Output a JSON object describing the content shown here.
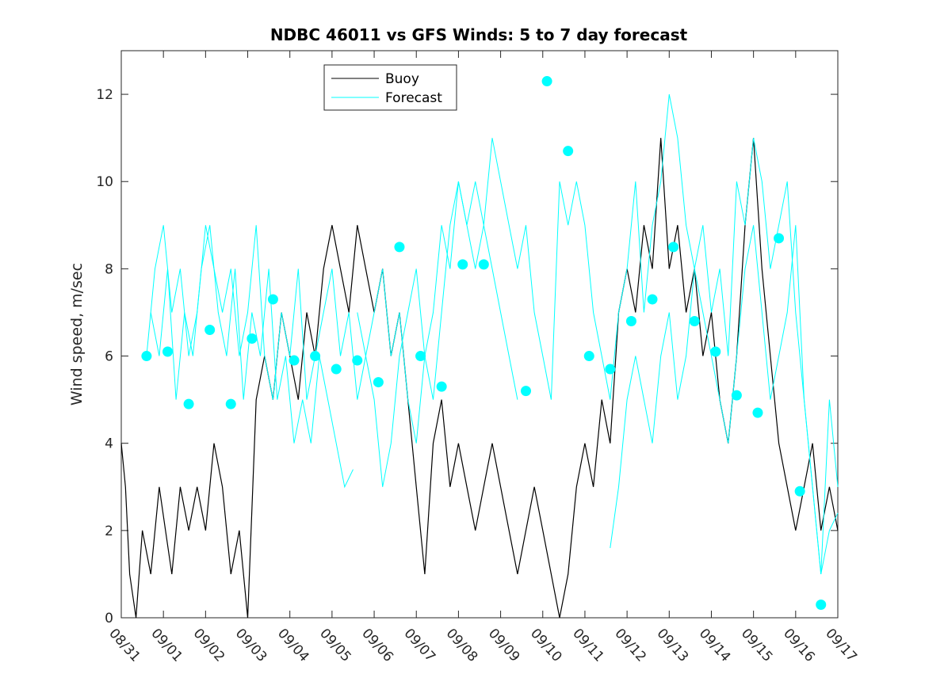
{
  "chart_data": {
    "type": "line",
    "title": "NDBC 46011 vs GFS Winds: 5 to 7 day forecast",
    "xlabel": "",
    "ylabel": "Wind speed, m/sec",
    "xlim": [
      0,
      17
    ],
    "ylim": [
      0,
      13
    ],
    "yticks": [
      0,
      2,
      4,
      6,
      8,
      10,
      12
    ],
    "xtick_labels": [
      "08/31",
      "09/01",
      "09/02",
      "09/03",
      "09/04",
      "09/05",
      "09/06",
      "09/07",
      "09/08",
      "09/09",
      "09/10",
      "09/11",
      "09/12",
      "09/13",
      "09/14",
      "09/15",
      "09/16",
      "09/17"
    ],
    "legend": {
      "position": "top-center",
      "entries": [
        "Buoy",
        "Forecast"
      ]
    },
    "colors": {
      "buoy": "#000000",
      "forecast": "#00ffff"
    },
    "series": [
      {
        "name": "Buoy",
        "x": [
          0,
          0.1,
          0.2,
          0.35,
          0.5,
          0.7,
          0.9,
          1.05,
          1.2,
          1.4,
          1.6,
          1.8,
          2.0,
          2.2,
          2.4,
          2.6,
          2.8,
          3.0,
          3.2,
          3.4,
          3.6,
          3.8,
          4.0,
          4.2,
          4.4,
          4.6,
          4.8,
          5.0,
          5.2,
          5.4,
          5.6,
          5.8,
          6.0,
          6.2,
          6.4,
          6.6,
          6.8,
          7.0,
          7.2,
          7.4,
          7.6,
          7.8,
          8.0,
          8.2,
          8.4,
          8.6,
          8.8,
          9.0,
          9.2,
          9.4,
          9.6,
          9.8,
          10.0,
          10.2,
          10.4,
          10.6,
          10.8,
          11.0,
          11.2,
          11.4,
          11.6,
          11.8,
          12.0,
          12.2,
          12.4,
          12.6,
          12.8,
          13.0,
          13.2,
          13.4,
          13.6,
          13.8,
          14.0,
          14.2,
          14.4,
          14.6,
          14.8,
          15.0,
          15.2,
          15.4,
          15.6,
          15.8,
          16.0,
          16.2,
          16.4,
          16.6,
          16.8,
          17.0
        ],
        "values": [
          4,
          3,
          1,
          0,
          2,
          1,
          3,
          2,
          1,
          3,
          2,
          3,
          2,
          4,
          3,
          1,
          2,
          0,
          5,
          6,
          5,
          7,
          6,
          5,
          7,
          6,
          8,
          9,
          8,
          7,
          9,
          8,
          7,
          8,
          6,
          7,
          5,
          3,
          1,
          4,
          5,
          3,
          4,
          3,
          2,
          3,
          4,
          3,
          2,
          1,
          2,
          3,
          2,
          1,
          0,
          1,
          3,
          4,
          3,
          5,
          4,
          7,
          8,
          7,
          9,
          8,
          11,
          8,
          9,
          7,
          8,
          6,
          7,
          5,
          4,
          6,
          9,
          11,
          8,
          6,
          4,
          3,
          2,
          3,
          4,
          2,
          3,
          2
        ]
      },
      {
        "name": "Forecast",
        "x": [
          0.6,
          0.8,
          1.0,
          1.2,
          1.4,
          1.6,
          1.8,
          2.0,
          2.2,
          2.4,
          2.6,
          2.8,
          3.0,
          3.2,
          3.4,
          3.6,
          3.8,
          4.0,
          4.2,
          4.4,
          4.6,
          4.8,
          5.0,
          5.2,
          5.4,
          5.6,
          5.8,
          6.0,
          6.2,
          6.4,
          6.6,
          6.8,
          7.0,
          7.2,
          7.4,
          7.6,
          7.8,
          8.0,
          8.2,
          8.4,
          8.6,
          8.8,
          9.0,
          9.2,
          9.4,
          9.6,
          9.8,
          10.0,
          10.2,
          10.4,
          10.6,
          10.8,
          11.0,
          11.2,
          11.4,
          11.6,
          11.8,
          12.0,
          12.2,
          12.4,
          12.6,
          12.8,
          13.0,
          13.2,
          13.4,
          13.6,
          13.8,
          14.0,
          14.2,
          14.4,
          14.6,
          14.8,
          15.0,
          15.2,
          15.4,
          15.6,
          15.8,
          16.0,
          16.2,
          16.4,
          16.6,
          16.8,
          17.0
        ],
        "values": [
          6,
          8,
          9,
          7,
          8,
          6,
          7,
          9,
          8,
          7,
          8,
          6,
          7,
          9,
          6,
          5,
          7,
          6,
          8,
          5,
          6,
          7,
          8,
          6,
          7,
          5,
          6,
          7,
          8,
          6,
          7,
          5,
          4,
          6,
          7,
          9,
          8,
          10,
          9,
          10,
          9,
          11,
          10,
          9,
          8,
          9,
          7,
          6,
          5,
          10,
          9,
          10,
          9,
          7,
          6,
          5,
          7,
          8,
          10,
          7,
          9,
          10,
          12,
          11,
          9,
          8,
          9,
          7,
          8,
          6,
          10,
          9,
          11,
          10,
          8,
          9,
          10,
          7,
          5,
          3,
          1,
          5,
          3
        ]
      },
      {
        "name": "Forecast",
        "x": [
          0.7,
          0.9,
          1.1,
          1.3,
          1.5,
          1.7,
          1.9,
          2.1,
          2.3,
          2.5,
          2.7,
          2.9,
          3.1,
          3.3,
          3.5,
          3.7,
          3.9,
          4.1,
          4.3,
          4.5,
          4.7,
          4.9,
          5.1,
          5.3,
          5.5
        ],
        "values": [
          7,
          6,
          8,
          5,
          7,
          6,
          8,
          9,
          7,
          6,
          8,
          5,
          7,
          6,
          8,
          5,
          6,
          4,
          5,
          4,
          6,
          5,
          4,
          3,
          3.4
        ]
      },
      {
        "name": "Forecast",
        "x": [
          5.6,
          5.8,
          6.0,
          6.2,
          6.4,
          6.6,
          6.8,
          7.0,
          7.2,
          7.4,
          7.6,
          7.8,
          8.0,
          8.2,
          8.4,
          8.6,
          8.8,
          9.0,
          9.2,
          9.4
        ],
        "values": [
          7,
          6,
          5,
          3,
          4,
          6,
          7,
          8,
          6,
          5,
          7,
          9,
          10,
          9,
          8,
          9,
          8,
          7,
          6,
          5
        ]
      },
      {
        "name": "Forecast",
        "x": [
          11.6,
          11.8,
          12.0,
          12.2,
          12.4,
          12.6,
          12.8,
          13.0,
          13.2,
          13.4,
          13.6,
          13.8,
          14.0,
          14.2,
          14.4,
          14.6,
          14.8,
          15.0,
          15.2,
          15.4,
          15.6,
          15.8,
          16.0,
          16.2,
          16.4,
          16.6,
          16.8,
          17.0
        ],
        "values": [
          1.6,
          3,
          5,
          6,
          5,
          4,
          6,
          7,
          5,
          6,
          8,
          7,
          6,
          5,
          4,
          6,
          8,
          9,
          7,
          5,
          6,
          7,
          9,
          5,
          3,
          1,
          2,
          2.4
        ]
      },
      {
        "name": "Forecast",
        "type": "scatter",
        "x": [
          0.6,
          1.1,
          1.6,
          2.1,
          2.6,
          3.1,
          3.6,
          4.1,
          4.6,
          5.1,
          5.6,
          6.1,
          6.6,
          7.1,
          7.6,
          8.1,
          8.6,
          9.6,
          10.1,
          10.6,
          11.1,
          11.6,
          12.1,
          12.6,
          13.1,
          13.6,
          14.1,
          14.6,
          15.1,
          15.6,
          16.1,
          16.6
        ],
        "values": [
          6.0,
          6.1,
          4.9,
          6.6,
          4.9,
          6.4,
          7.3,
          5.9,
          6.0,
          5.7,
          5.9,
          5.4,
          8.5,
          6.0,
          5.3,
          8.1,
          8.1,
          5.2,
          12.3,
          10.7,
          6.0,
          5.7,
          6.8,
          7.3,
          8.5,
          6.8,
          6.1,
          5.1,
          4.7,
          8.7,
          2.9,
          0.3
        ]
      }
    ]
  }
}
